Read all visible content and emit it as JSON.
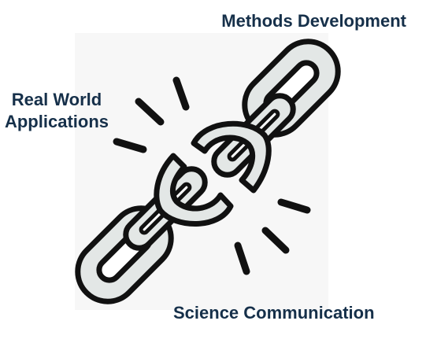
{
  "labels": {
    "methods": "Methods Development",
    "real_world_line1": "Real World",
    "real_world_line2": "Applications",
    "science": "Science Communication"
  },
  "colors": {
    "text": "#16304a",
    "outline": "#111111",
    "link_fill": "#e3e7e6",
    "panel": "#f7f7f7"
  },
  "icon": "broken-chain-icon"
}
